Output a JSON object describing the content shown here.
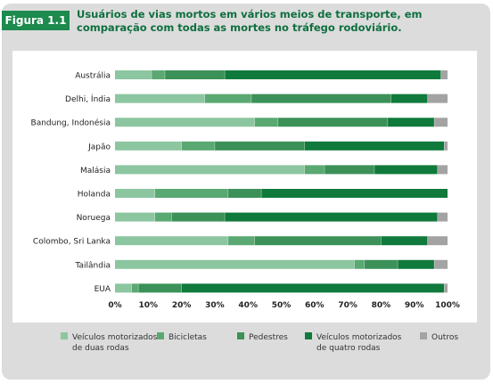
{
  "figure": {
    "badge": "Figura 1.1",
    "title_line1": "Usuários de vias mortos em vários meios de transporte, em",
    "title_line2": "comparação com todas as mortes no tráfego rodoviário."
  },
  "chart_data": {
    "type": "bar",
    "orientation": "horizontal",
    "stacked": true,
    "title": "Usuários de vias mortos em vários meios de transporte, em comparação com todas as mortes no tráfego rodoviário.",
    "xlim": [
      0,
      100
    ],
    "x_ticks": [
      "0%",
      "10%",
      "20%",
      "30%",
      "40%",
      "50%",
      "60%",
      "70%",
      "80%",
      "90%",
      "100%"
    ],
    "grid": false,
    "legend_position": "bottom",
    "categories": [
      "Austrália",
      "Delhi, Índia",
      "Bandung, Indonésia",
      "Japão",
      "Malásia",
      "Holanda",
      "Noruega",
      "Colombo, Sri Lanka",
      "Tailândia",
      "EUA"
    ],
    "series": [
      {
        "name": "Veículos motorizados de duas rodas",
        "legend_line1": "Veículos motorizados",
        "legend_line2": "de duas rodas",
        "color": "#8cc6a0",
        "values": [
          11,
          27,
          42,
          20,
          57,
          12,
          12,
          34,
          72,
          5
        ]
      },
      {
        "name": "Bicicletas",
        "legend_line1": "Bicicletas",
        "legend_line2": "",
        "color": "#5aa872",
        "values": [
          4,
          14,
          7,
          10,
          6,
          22,
          5,
          8,
          3,
          2
        ]
      },
      {
        "name": "Pedestres",
        "legend_line1": "Pedestres",
        "legend_line2": "",
        "color": "#3b9158",
        "values": [
          18,
          42,
          33,
          27,
          15,
          10,
          16,
          38,
          10,
          13
        ]
      },
      {
        "name": "Veículos motorizados de quatro rodas",
        "legend_line1": "Veículos motorizados",
        "legend_line2": "de quatro rodas",
        "color": "#0f7a3c",
        "values": [
          65,
          11,
          14,
          42,
          19,
          56,
          64,
          14,
          11,
          79
        ]
      },
      {
        "name": "Outros",
        "legend_line1": "Outros",
        "legend_line2": "",
        "color": "#a3a3a3",
        "values": [
          2,
          6,
          4,
          1,
          3,
          0,
          3,
          6,
          4,
          1
        ]
      }
    ]
  }
}
